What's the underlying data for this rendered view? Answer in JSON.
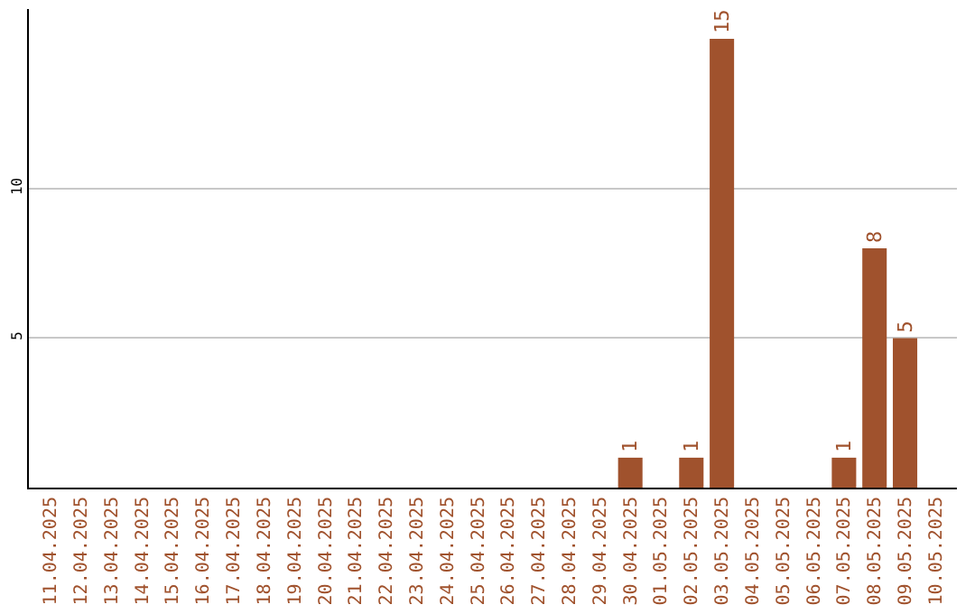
{
  "chart_data": {
    "type": "bar",
    "categories": [
      "11.04.2025",
      "12.04.2025",
      "13.04.2025",
      "14.04.2025",
      "15.04.2025",
      "16.04.2025",
      "17.04.2025",
      "18.04.2025",
      "19.04.2025",
      "20.04.2025",
      "21.04.2025",
      "22.04.2025",
      "23.04.2025",
      "24.04.2025",
      "25.04.2025",
      "26.04.2025",
      "27.04.2025",
      "28.04.2025",
      "29.04.2025",
      "30.04.2025",
      "01.05.2025",
      "02.05.2025",
      "03.05.2025",
      "04.05.2025",
      "05.05.2025",
      "06.05.2025",
      "07.05.2025",
      "08.05.2025",
      "09.05.2025",
      "10.05.2025"
    ],
    "values": [
      0,
      0,
      0,
      0,
      0,
      0,
      0,
      0,
      0,
      0,
      0,
      0,
      0,
      0,
      0,
      0,
      0,
      0,
      0,
      1,
      0,
      1,
      15,
      0,
      0,
      0,
      1,
      8,
      5,
      0
    ],
    "value_labels": [
      null,
      null,
      null,
      null,
      null,
      null,
      null,
      null,
      null,
      null,
      null,
      null,
      null,
      null,
      null,
      null,
      null,
      null,
      null,
      "1",
      null,
      "1",
      "15",
      null,
      null,
      null,
      "1",
      "8",
      "5",
      null
    ],
    "color": "#a0522d",
    "ylim": [
      0,
      16
    ],
    "yticks": [
      5,
      10
    ],
    "grid": "y",
    "legend": false
  }
}
